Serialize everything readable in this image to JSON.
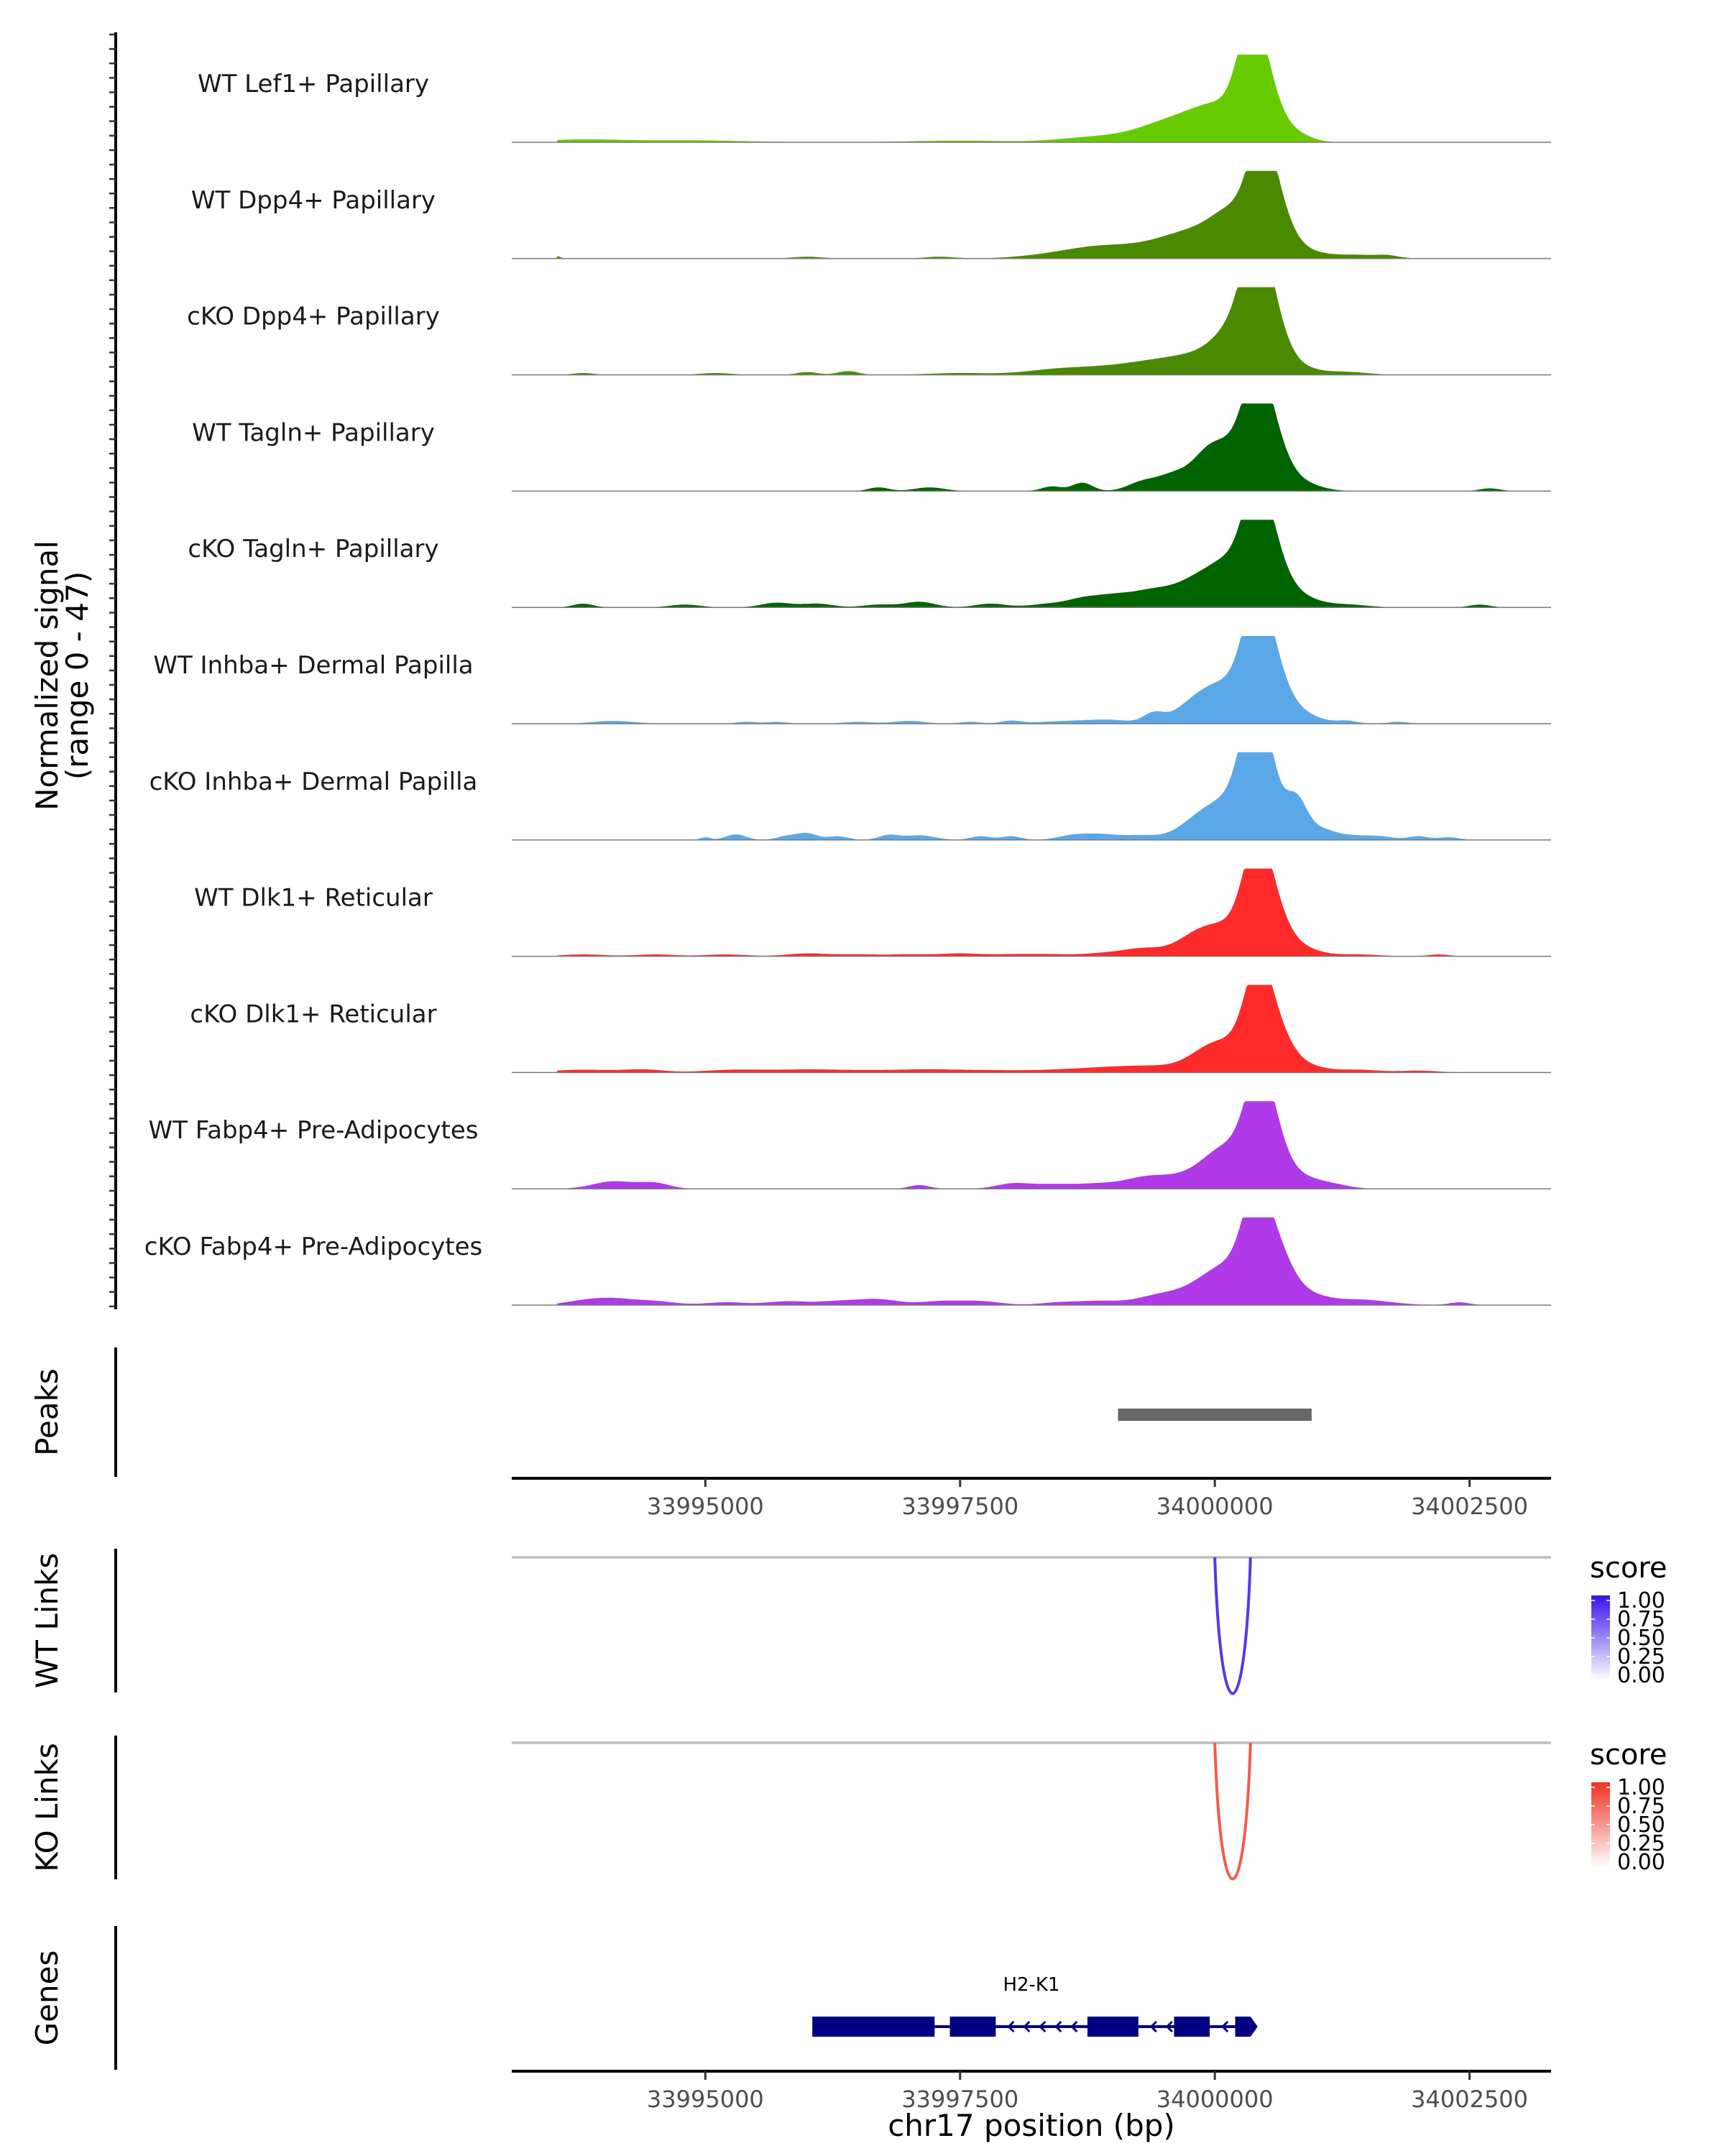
{
  "chart_data": {
    "type": "area",
    "title": "",
    "xlabel": "chr17 position (bp)",
    "coverage_ylabel": [
      "Normalized signal",
      "(range 0 - 47)"
    ],
    "xlim": [
      33993100,
      34003300
    ],
    "ylim": [
      0,
      47
    ],
    "xticks": [
      {
        "value": 33995000,
        "label": "33995000"
      },
      {
        "value": 33997500,
        "label": "33997500"
      },
      {
        "value": 34000000,
        "label": "34000000"
      },
      {
        "value": 34002500,
        "label": "34002500"
      }
    ],
    "tracks": [
      {
        "name": "WT Lef1+ Papillary",
        "color": "#66cc00",
        "peaks": [
          [
            33993800,
            1.5,
            400
          ],
          [
            33994900,
            1.0,
            500
          ],
          [
            33997500,
            0.9,
            500
          ],
          [
            33998700,
            1.5,
            300
          ],
          [
            33999200,
            2.5,
            400
          ],
          [
            33999500,
            5.0,
            300
          ],
          [
            33999800,
            8.0,
            300
          ],
          [
            34000100,
            14.0,
            250
          ],
          [
            34000350,
            44.0,
            130
          ],
          [
            34000500,
            24.0,
            150
          ],
          [
            34000800,
            4.0,
            150
          ]
        ]
      },
      {
        "name": "WT Dpp4+ Papillary",
        "color": "#4a8a00",
        "peaks": [
          [
            33993500,
            2.5,
            50
          ],
          [
            33996000,
            1.0,
            150
          ],
          [
            33997300,
            1.0,
            150
          ],
          [
            33998300,
            1.2,
            300
          ],
          [
            33998700,
            3.0,
            300
          ],
          [
            33999000,
            4.0,
            300
          ],
          [
            33999500,
            6.0,
            300
          ],
          [
            33999900,
            12.0,
            300
          ],
          [
            34000200,
            18.0,
            200
          ],
          [
            34000450,
            44.0,
            130
          ],
          [
            34000600,
            22.0,
            150
          ],
          [
            34000850,
            4.0,
            200
          ],
          [
            34001400,
            2.0,
            250
          ],
          [
            34001700,
            1.0,
            100
          ]
        ]
      },
      {
        "name": "cKO Dpp4+ Papillary",
        "color": "#4a8a00",
        "peaks": [
          [
            33993800,
            1.0,
            100
          ],
          [
            33995100,
            1.0,
            150
          ],
          [
            33996000,
            1.5,
            100
          ],
          [
            33996400,
            2.0,
            100
          ],
          [
            33997500,
            1.0,
            300
          ],
          [
            33998400,
            2.0,
            300
          ],
          [
            33999000,
            4.0,
            400
          ],
          [
            33999500,
            5.0,
            300
          ],
          [
            34000000,
            10.0,
            300
          ],
          [
            34000250,
            20.0,
            200
          ],
          [
            34000400,
            45.0,
            130
          ],
          [
            34000550,
            24.0,
            150
          ],
          [
            34000800,
            4.0,
            200
          ],
          [
            34001300,
            1.5,
            200
          ]
        ]
      },
      {
        "name": "WT Tagln+ Papillary",
        "color": "#006400",
        "peaks": [
          [
            33996700,
            2.0,
            100
          ],
          [
            33997200,
            2.0,
            150
          ],
          [
            33998400,
            2.5,
            100
          ],
          [
            33998700,
            4.5,
            100
          ],
          [
            33999300,
            5.0,
            150
          ],
          [
            33999600,
            8.0,
            150
          ],
          [
            33999900,
            12.0,
            150
          ],
          [
            34000150,
            22.0,
            200
          ],
          [
            34000400,
            42.0,
            130
          ],
          [
            34000550,
            25.0,
            150
          ],
          [
            34000800,
            5.0,
            200
          ],
          [
            34002700,
            1.5,
            100
          ]
        ]
      },
      {
        "name": "cKO Tagln+ Papillary",
        "color": "#006400",
        "peaks": [
          [
            33993800,
            2.0,
            100
          ],
          [
            33994800,
            1.5,
            150
          ],
          [
            33995700,
            2.5,
            150
          ],
          [
            33996100,
            2.0,
            150
          ],
          [
            33996700,
            1.5,
            150
          ],
          [
            33997100,
            3.0,
            150
          ],
          [
            33997800,
            2.0,
            150
          ],
          [
            33998400,
            2.0,
            200
          ],
          [
            33998700,
            3.0,
            150
          ],
          [
            33999000,
            6.0,
            200
          ],
          [
            33999400,
            8.0,
            200
          ],
          [
            33999800,
            12.0,
            200
          ],
          [
            34000150,
            22.0,
            200
          ],
          [
            34000400,
            44.0,
            130
          ],
          [
            34000550,
            25.0,
            150
          ],
          [
            34000800,
            6.0,
            200
          ],
          [
            34001300,
            1.5,
            200
          ],
          [
            34002600,
            1.5,
            100
          ]
        ]
      },
      {
        "name": "WT Inhba+ Dermal Papilla",
        "color": "#5ba8e8",
        "peaks": [
          [
            33994100,
            1.5,
            200
          ],
          [
            33995400,
            1.0,
            100
          ],
          [
            33995700,
            1.0,
            100
          ],
          [
            33996500,
            1.0,
            150
          ],
          [
            33997000,
            1.5,
            150
          ],
          [
            33997600,
            1.0,
            100
          ],
          [
            33998000,
            1.5,
            100
          ],
          [
            33998600,
            1.5,
            300
          ],
          [
            33999000,
            1.5,
            200
          ],
          [
            33999400,
            5.0,
            100
          ],
          [
            33999800,
            8.0,
            200
          ],
          [
            34000150,
            20.0,
            250
          ],
          [
            34000400,
            44.0,
            130
          ],
          [
            34000550,
            25.0,
            150
          ],
          [
            34000800,
            6.0,
            200
          ],
          [
            34001300,
            1.5,
            100
          ],
          [
            34001800,
            1.0,
            100
          ]
        ]
      },
      {
        "name": "cKO Inhba+ Dermal Papilla",
        "color": "#5ba8e8",
        "peaks": [
          [
            33995000,
            1.5,
            50
          ],
          [
            33995300,
            3.0,
            100
          ],
          [
            33995800,
            2.0,
            100
          ],
          [
            33996000,
            3.5,
            100
          ],
          [
            33996300,
            2.0,
            100
          ],
          [
            33996800,
            2.5,
            100
          ],
          [
            33997100,
            2.5,
            150
          ],
          [
            33997700,
            2.0,
            100
          ],
          [
            33998000,
            2.0,
            100
          ],
          [
            33998600,
            2.0,
            150
          ],
          [
            33998900,
            3.0,
            200
          ],
          [
            33999300,
            2.0,
            150
          ],
          [
            33999800,
            6.0,
            200
          ],
          [
            34000150,
            20.0,
            250
          ],
          [
            34000380,
            46.0,
            130
          ],
          [
            34000500,
            28.0,
            150
          ],
          [
            34000800,
            18.0,
            100
          ],
          [
            34001000,
            6.0,
            150
          ],
          [
            34001300,
            2.0,
            150
          ],
          [
            34001600,
            2.0,
            150
          ],
          [
            34002000,
            2.0,
            100
          ],
          [
            34002300,
            1.5,
            100
          ]
        ]
      },
      {
        "name": "WT Dlk1+ Reticular",
        "color": "#ff2a2a",
        "peaks": [
          [
            33993800,
            1.0,
            200
          ],
          [
            33994500,
            1.0,
            200
          ],
          [
            33995200,
            1.0,
            200
          ],
          [
            33996000,
            1.5,
            200
          ],
          [
            33996500,
            1.0,
            200
          ],
          [
            33997000,
            1.0,
            200
          ],
          [
            33997500,
            1.5,
            200
          ],
          [
            33998000,
            1.0,
            200
          ],
          [
            33998400,
            1.0,
            200
          ],
          [
            33998900,
            1.5,
            200
          ],
          [
            33999300,
            4.0,
            200
          ],
          [
            33999800,
            8.0,
            200
          ],
          [
            34000150,
            15.0,
            250
          ],
          [
            34000400,
            42.0,
            130
          ],
          [
            34000550,
            22.0,
            150
          ],
          [
            34000800,
            5.0,
            200
          ],
          [
            34001400,
            1.0,
            200
          ],
          [
            34002200,
            1.0,
            100
          ]
        ]
      },
      {
        "name": "cKO Dlk1+ Reticular",
        "color": "#ff2a2a",
        "peaks": [
          [
            33993800,
            1.5,
            300
          ],
          [
            33994400,
            1.5,
            200
          ],
          [
            33995300,
            1.5,
            300
          ],
          [
            33996000,
            1.5,
            300
          ],
          [
            33996600,
            1.0,
            300
          ],
          [
            33997200,
            1.5,
            300
          ],
          [
            33997800,
            1.0,
            300
          ],
          [
            33998400,
            1.0,
            300
          ],
          [
            33998900,
            2.0,
            300
          ],
          [
            33999400,
            3.0,
            300
          ],
          [
            33999900,
            5.0,
            200
          ],
          [
            34000150,
            14.0,
            250
          ],
          [
            34000420,
            44.0,
            130
          ],
          [
            34000600,
            18.0,
            150
          ],
          [
            34000850,
            4.0,
            200
          ],
          [
            34001400,
            1.5,
            200
          ],
          [
            34002000,
            1.0,
            200
          ]
        ]
      },
      {
        "name": "WT Fabp4+ Pre-Adipocytes",
        "color": "#b03ae8",
        "peaks": [
          [
            33994100,
            4.0,
            200
          ],
          [
            33994500,
            3.0,
            150
          ],
          [
            33997100,
            2.0,
            100
          ],
          [
            33998000,
            2.0,
            150
          ],
          [
            33998400,
            2.5,
            300
          ],
          [
            33998900,
            2.0,
            200
          ],
          [
            33999300,
            4.0,
            200
          ],
          [
            33999700,
            6.0,
            300
          ],
          [
            34000000,
            8.0,
            200
          ],
          [
            34000200,
            15.0,
            200
          ],
          [
            34000420,
            40.0,
            130
          ],
          [
            34000550,
            25.0,
            150
          ],
          [
            34000850,
            6.0,
            200
          ],
          [
            34001200,
            1.5,
            150
          ]
        ]
      },
      {
        "name": "cKO Fabp4+ Pre-Adipocytes",
        "color": "#b03ae8",
        "peaks": [
          [
            33993800,
            2.0,
            200
          ],
          [
            33994100,
            3.0,
            200
          ],
          [
            33994500,
            2.0,
            200
          ],
          [
            33995200,
            1.5,
            200
          ],
          [
            33995800,
            2.0,
            200
          ],
          [
            33996300,
            2.0,
            200
          ],
          [
            33996700,
            3.0,
            200
          ],
          [
            33997300,
            2.0,
            200
          ],
          [
            33997700,
            2.0,
            200
          ],
          [
            33998500,
            1.5,
            200
          ],
          [
            33998900,
            2.0,
            200
          ],
          [
            33999400,
            3.0,
            200
          ],
          [
            33999800,
            6.0,
            300
          ],
          [
            34000150,
            18.0,
            250
          ],
          [
            34000400,
            44.0,
            130
          ],
          [
            34000600,
            24.0,
            150
          ],
          [
            34000850,
            6.0,
            200
          ],
          [
            34001400,
            3.0,
            300
          ],
          [
            34002400,
            1.5,
            100
          ]
        ]
      }
    ],
    "peaks_track": {
      "label": "Peaks",
      "intervals": [
        [
          33999050,
          34000950
        ]
      ],
      "color": "#666666"
    },
    "links": [
      {
        "label": "WT Links",
        "start": 34000000,
        "end": 34000350,
        "score": 0.85,
        "legend_title": "score",
        "legend_ticks": [
          "1.00",
          "0.75",
          "0.50",
          "0.25",
          "0.00"
        ],
        "high_color": "#3a12e8",
        "low_color": "#ffffff"
      },
      {
        "label": "KO Links",
        "start": 34000000,
        "end": 34000350,
        "score": 0.8,
        "legend_title": "score",
        "legend_ticks": [
          "1.00",
          "0.75",
          "0.50",
          "0.25",
          "0.00"
        ],
        "high_color": "#ee3322",
        "low_color": "#ffffff"
      }
    ],
    "genes": {
      "label": "Genes",
      "name": "H2-K1",
      "strand": "-",
      "color": "#000080",
      "span": [
        33996050,
        34000350
      ],
      "exons": [
        [
          33996050,
          33997250
        ],
        [
          33997400,
          33997850
        ],
        [
          33998750,
          33999250
        ],
        [
          33999600,
          33999950
        ],
        [
          34000200,
          34000350
        ]
      ]
    }
  }
}
